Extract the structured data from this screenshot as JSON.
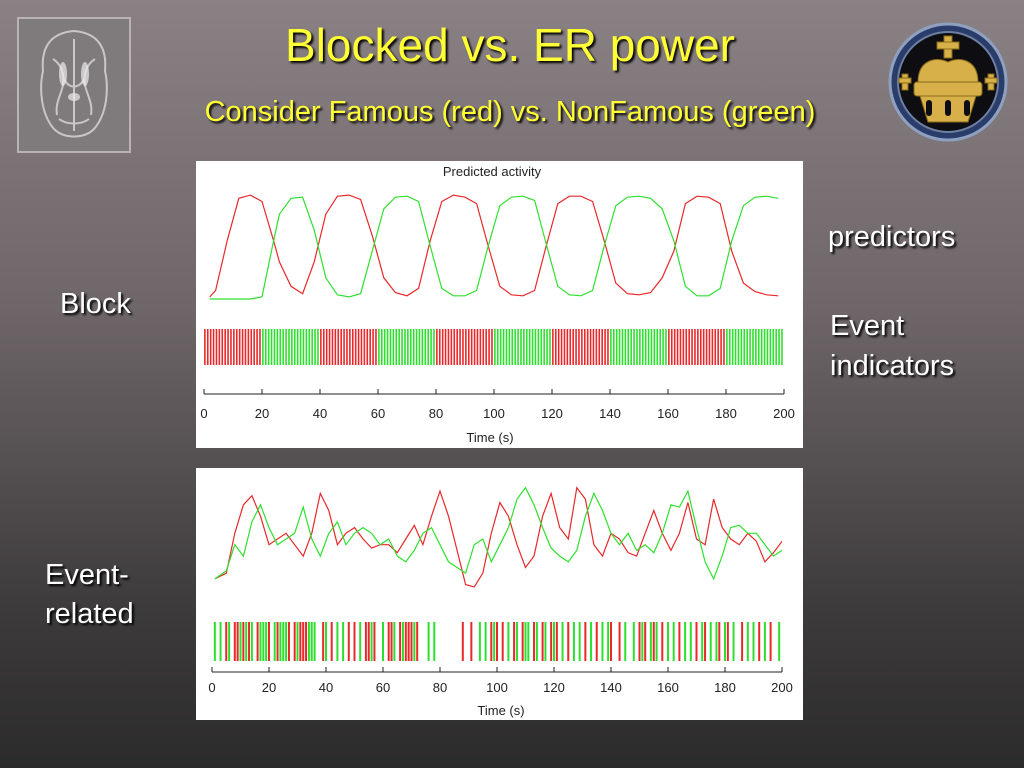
{
  "slide": {
    "title": "Blocked vs. ER power",
    "subtitle": "Consider Famous (red) vs. NonFamous (green)",
    "labels": {
      "block": "Block",
      "event_related_line1": "Event-",
      "event_related_line2": "related",
      "predictors": "predictors",
      "event_indicators_line1": "Event",
      "event_indicators_line2": "indicators"
    }
  },
  "colors": {
    "famous": "#e8282a",
    "nonfamous": "#2ee02e",
    "title": "#ffff33"
  },
  "chart_data": [
    {
      "type": "line",
      "title": "Predicted activity",
      "xlabel": "Time (s)",
      "ylabel": "",
      "xlim": [
        0,
        200
      ],
      "xticks": [
        0,
        20,
        40,
        60,
        80,
        100,
        120,
        140,
        160,
        180,
        200
      ],
      "block_length_s": 20,
      "event_interval_s": 2,
      "series": [
        {
          "name": "Famous",
          "color": "#e8282a",
          "x": [
            2,
            4,
            8,
            12,
            16,
            20,
            24,
            26,
            30,
            34,
            38,
            42,
            46,
            50,
            54,
            58,
            62,
            66,
            70,
            74,
            78,
            82,
            86,
            90,
            94,
            98,
            102,
            106,
            110,
            114,
            118,
            122,
            126,
            130,
            134,
            138,
            142,
            146,
            150,
            154,
            158,
            162,
            166,
            170,
            174,
            178,
            182,
            186,
            190,
            194,
            198
          ],
          "y": [
            0.02,
            0.08,
            0.55,
            0.95,
            0.98,
            0.92,
            0.55,
            0.35,
            0.12,
            0.05,
            0.35,
            0.8,
            0.97,
            0.98,
            0.94,
            0.6,
            0.2,
            0.06,
            0.03,
            0.1,
            0.55,
            0.92,
            0.98,
            0.96,
            0.9,
            0.5,
            0.12,
            0.04,
            0.03,
            0.08,
            0.5,
            0.9,
            0.97,
            0.97,
            0.92,
            0.55,
            0.15,
            0.05,
            0.04,
            0.06,
            0.2,
            0.45,
            0.9,
            0.97,
            0.96,
            0.9,
            0.45,
            0.15,
            0.07,
            0.04,
            0.03
          ]
        },
        {
          "name": "NonFamous",
          "color": "#2ee02e",
          "x": [
            2,
            4,
            8,
            12,
            16,
            20,
            24,
            26,
            30,
            34,
            38,
            42,
            46,
            50,
            54,
            58,
            62,
            66,
            70,
            74,
            78,
            82,
            86,
            90,
            94,
            98,
            102,
            106,
            110,
            114,
            118,
            122,
            126,
            130,
            134,
            138,
            142,
            146,
            150,
            154,
            158,
            162,
            166,
            170,
            174,
            178,
            182,
            186,
            190,
            194,
            198
          ],
          "y": [
            0.0,
            0.0,
            0.0,
            0.0,
            0.0,
            0.02,
            0.55,
            0.8,
            0.95,
            0.96,
            0.65,
            0.2,
            0.04,
            0.02,
            0.05,
            0.45,
            0.85,
            0.96,
            0.97,
            0.92,
            0.5,
            0.1,
            0.03,
            0.03,
            0.08,
            0.5,
            0.88,
            0.96,
            0.97,
            0.93,
            0.52,
            0.12,
            0.04,
            0.03,
            0.08,
            0.5,
            0.88,
            0.96,
            0.97,
            0.95,
            0.85,
            0.55,
            0.12,
            0.03,
            0.03,
            0.1,
            0.55,
            0.88,
            0.96,
            0.97,
            0.95
          ]
        }
      ],
      "event_indicators": {
        "famous_blocks": [
          [
            0,
            20
          ],
          [
            40,
            60
          ],
          [
            80,
            100
          ],
          [
            120,
            140
          ],
          [
            160,
            180
          ]
        ],
        "nonfamous_blocks": [
          [
            20,
            40
          ],
          [
            60,
            80
          ],
          [
            100,
            120
          ],
          [
            140,
            160
          ],
          [
            180,
            200
          ]
        ]
      }
    },
    {
      "type": "line",
      "title": "",
      "xlabel": "Time (s)",
      "ylabel": "",
      "xlim": [
        0,
        200
      ],
      "xticks": [
        0,
        20,
        40,
        60,
        80,
        100,
        120,
        140,
        160,
        180,
        200
      ],
      "series": [
        {
          "name": "Famous",
          "color": "#e8282a",
          "x": [
            1,
            5,
            8,
            11,
            14,
            17,
            20,
            23,
            26,
            29,
            32,
            35,
            38,
            41,
            44,
            47,
            50,
            53,
            56,
            59,
            62,
            65,
            68,
            71,
            74,
            77,
            80,
            83,
            86,
            89,
            92,
            95,
            98,
            101,
            104,
            107,
            110,
            113,
            116,
            119,
            122,
            125,
            128,
            131,
            134,
            137,
            140,
            143,
            146,
            149,
            152,
            155,
            158,
            161,
            164,
            167,
            170,
            173,
            176,
            179,
            182,
            185,
            188,
            191,
            194,
            197,
            200
          ],
          "y": [
            0.15,
            0.2,
            0.55,
            0.8,
            0.88,
            0.7,
            0.45,
            0.5,
            0.55,
            0.45,
            0.35,
            0.55,
            0.9,
            0.75,
            0.45,
            0.55,
            0.6,
            0.5,
            0.42,
            0.45,
            0.45,
            0.38,
            0.5,
            0.62,
            0.45,
            0.7,
            0.92,
            0.7,
            0.4,
            0.1,
            0.08,
            0.2,
            0.55,
            0.82,
            0.7,
            0.45,
            0.25,
            0.35,
            0.7,
            0.9,
            0.6,
            0.5,
            0.95,
            0.85,
            0.45,
            0.35,
            0.55,
            0.5,
            0.38,
            0.35,
            0.55,
            0.75,
            0.55,
            0.4,
            0.55,
            0.82,
            0.5,
            0.45,
            0.85,
            0.6,
            0.5,
            0.45,
            0.55,
            0.48,
            0.3,
            0.38,
            0.48
          ]
        },
        {
          "name": "NonFamous",
          "color": "#2ee02e",
          "x": [
            1,
            5,
            8,
            11,
            14,
            17,
            20,
            23,
            26,
            29,
            32,
            35,
            38,
            41,
            44,
            47,
            50,
            53,
            56,
            59,
            62,
            65,
            68,
            71,
            74,
            77,
            80,
            83,
            86,
            89,
            92,
            95,
            98,
            101,
            104,
            107,
            110,
            113,
            116,
            119,
            122,
            125,
            128,
            131,
            134,
            137,
            140,
            143,
            146,
            149,
            152,
            155,
            158,
            161,
            164,
            167,
            170,
            173,
            176,
            179,
            182,
            185,
            188,
            191,
            194,
            197,
            200
          ],
          "y": [
            0.15,
            0.22,
            0.45,
            0.35,
            0.65,
            0.8,
            0.6,
            0.45,
            0.5,
            0.55,
            0.78,
            0.5,
            0.35,
            0.55,
            0.65,
            0.45,
            0.55,
            0.6,
            0.55,
            0.45,
            0.5,
            0.35,
            0.3,
            0.4,
            0.55,
            0.6,
            0.45,
            0.3,
            0.25,
            0.2,
            0.45,
            0.5,
            0.3,
            0.45,
            0.6,
            0.85,
            0.95,
            0.8,
            0.6,
            0.42,
            0.35,
            0.3,
            0.4,
            0.7,
            0.9,
            0.75,
            0.55,
            0.45,
            0.55,
            0.4,
            0.45,
            0.38,
            0.55,
            0.8,
            0.78,
            0.92,
            0.6,
            0.3,
            0.15,
            0.35,
            0.6,
            0.62,
            0.55,
            0.55,
            0.45,
            0.35,
            0.4
          ]
        }
      ],
      "event_indicators": {
        "famous_times": [
          5,
          8,
          9,
          11,
          13,
          16,
          20,
          23,
          27,
          29,
          31,
          32,
          33,
          39,
          42,
          48,
          50,
          54,
          55,
          57,
          62,
          63,
          66,
          68,
          69,
          70,
          72,
          88,
          91,
          98,
          100,
          102,
          106,
          109,
          113,
          116,
          119,
          121,
          125,
          131,
          135,
          140,
          143,
          150,
          152,
          155,
          158,
          164,
          170,
          173,
          178,
          181,
          186,
          192,
          196
        ],
        "nonfamous_times": [
          1,
          3,
          6,
          10,
          12,
          14,
          17,
          18,
          19,
          22,
          24,
          25,
          26,
          30,
          34,
          35,
          36,
          40,
          44,
          46,
          52,
          56,
          60,
          64,
          67,
          71,
          76,
          78,
          94,
          96,
          99,
          104,
          107,
          110,
          111,
          114,
          117,
          120,
          123,
          127,
          129,
          133,
          137,
          139,
          145,
          148,
          151,
          154,
          156,
          160,
          162,
          166,
          168,
          172,
          175,
          177,
          180,
          183,
          188,
          190,
          194,
          199
        ]
      }
    }
  ]
}
